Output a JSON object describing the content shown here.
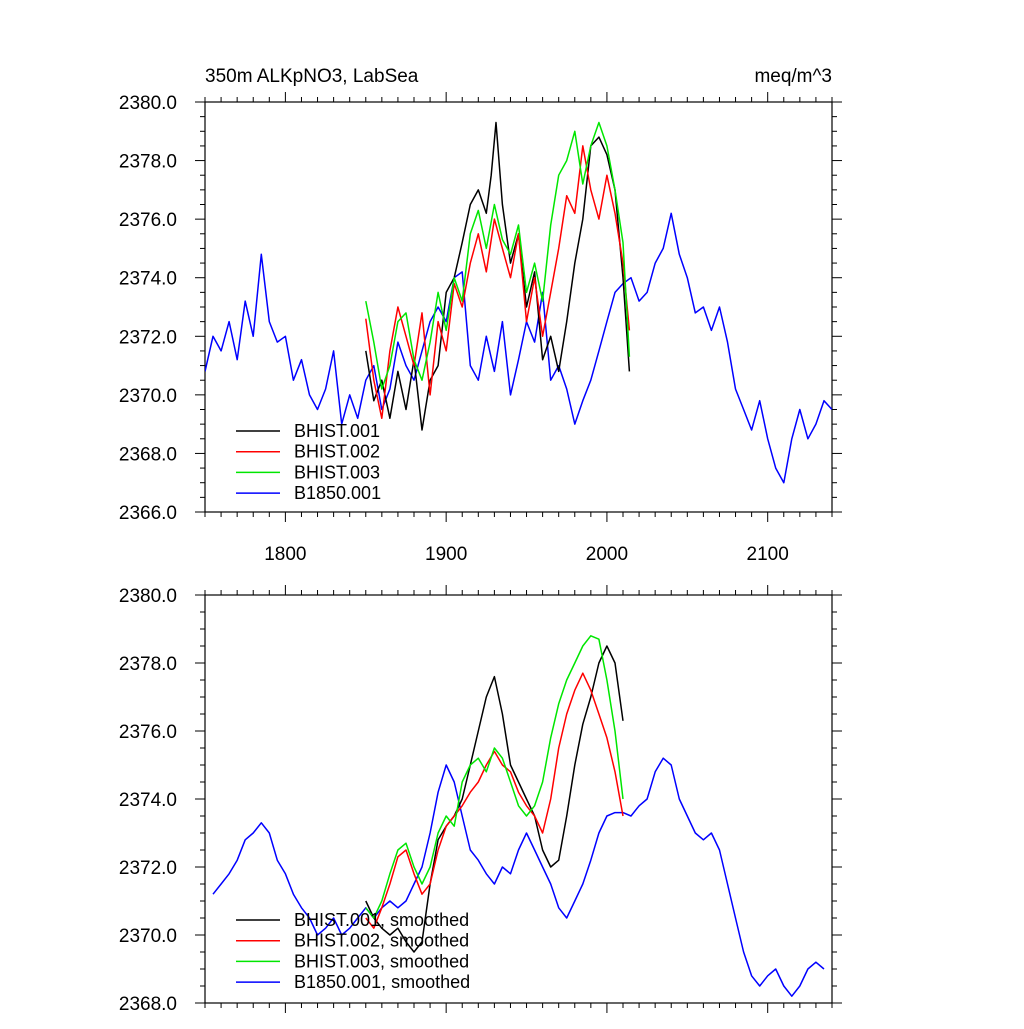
{
  "colors": {
    "BHIST.001": "#000000",
    "BHIST.002": "#ff0000",
    "BHIST.003": "#00e600",
    "B1850.001": "#0000ff"
  },
  "chart_data": [
    {
      "type": "line",
      "title": "350m ALKpNO3, LabSea",
      "units": "meq/m^3",
      "xlim": [
        1750,
        2140
      ],
      "ylim": [
        2366.0,
        2380.0
      ],
      "yticks": [
        "2380.0",
        "2378.0",
        "2376.0",
        "2374.0",
        "2372.0",
        "2370.0",
        "2368.0",
        "2366.0"
      ],
      "xticks": [
        "1800",
        "1900",
        "2000",
        "2100"
      ],
      "legend_position": "bottom-left",
      "series": [
        {
          "name": "BHIST.001",
          "x": [
            1850,
            1855,
            1860,
            1865,
            1870,
            1875,
            1880,
            1885,
            1890,
            1895,
            1900,
            1905,
            1910,
            1915,
            1920,
            1925,
            1928,
            1931,
            1935,
            1940,
            1945,
            1950,
            1955,
            1960,
            1965,
            1970,
            1975,
            1980,
            1985,
            1990,
            1995,
            2000,
            2005,
            2010,
            2014
          ],
          "values": [
            2371.5,
            2369.8,
            2370.5,
            2369.2,
            2370.8,
            2369.5,
            2371.2,
            2368.8,
            2370.5,
            2371.0,
            2373.5,
            2374.0,
            2375.2,
            2376.5,
            2377.0,
            2376.2,
            2377.5,
            2379.3,
            2376.5,
            2374.5,
            2375.5,
            2373.0,
            2374.2,
            2371.2,
            2372.0,
            2370.8,
            2372.5,
            2374.5,
            2376.0,
            2378.5,
            2378.8,
            2378.2,
            2377.0,
            2374.0,
            2370.8
          ]
        },
        {
          "name": "BHIST.002",
          "x": [
            1850,
            1855,
            1860,
            1865,
            1870,
            1875,
            1880,
            1885,
            1890,
            1895,
            1900,
            1905,
            1910,
            1915,
            1920,
            1925,
            1930,
            1935,
            1940,
            1945,
            1950,
            1955,
            1960,
            1965,
            1970,
            1975,
            1980,
            1985,
            1990,
            1995,
            2000,
            2005,
            2010,
            2014
          ],
          "values": [
            2372.6,
            2370.5,
            2369.2,
            2371.5,
            2373.0,
            2372.0,
            2371.0,
            2372.8,
            2370.0,
            2372.5,
            2371.5,
            2373.8,
            2373.0,
            2374.5,
            2375.5,
            2374.2,
            2376.0,
            2375.0,
            2374.0,
            2375.5,
            2372.5,
            2374.0,
            2372.0,
            2373.5,
            2375.0,
            2376.8,
            2376.2,
            2378.5,
            2377.0,
            2376.0,
            2377.5,
            2376.2,
            2374.5,
            2372.2
          ]
        },
        {
          "name": "BHIST.003",
          "x": [
            1850,
            1855,
            1860,
            1865,
            1870,
            1875,
            1880,
            1885,
            1890,
            1895,
            1900,
            1905,
            1910,
            1915,
            1920,
            1925,
            1930,
            1935,
            1940,
            1945,
            1950,
            1955,
            1960,
            1965,
            1970,
            1975,
            1980,
            1985,
            1990,
            1995,
            2000,
            2005,
            2010,
            2014
          ],
          "values": [
            2373.2,
            2371.8,
            2370.2,
            2371.0,
            2372.5,
            2372.8,
            2371.2,
            2370.5,
            2371.8,
            2373.5,
            2372.2,
            2374.0,
            2373.2,
            2375.5,
            2376.3,
            2375.0,
            2376.5,
            2375.3,
            2374.8,
            2375.8,
            2373.5,
            2374.5,
            2373.2,
            2375.8,
            2377.5,
            2378.0,
            2379.0,
            2377.2,
            2378.5,
            2379.3,
            2378.5,
            2377.0,
            2375.2,
            2371.3
          ]
        },
        {
          "name": "B1850.001",
          "x": [
            1750,
            1755,
            1760,
            1765,
            1770,
            1775,
            1780,
            1785,
            1790,
            1795,
            1800,
            1805,
            1810,
            1815,
            1820,
            1825,
            1830,
            1835,
            1840,
            1845,
            1850,
            1855,
            1860,
            1865,
            1870,
            1875,
            1880,
            1885,
            1890,
            1895,
            1900,
            1905,
            1910,
            1915,
            1920,
            1925,
            1930,
            1935,
            1940,
            1945,
            1950,
            1955,
            1960,
            1965,
            1970,
            1975,
            1980,
            1985,
            1990,
            1995,
            2000,
            2005,
            2010,
            2015,
            2020,
            2025,
            2030,
            2035,
            2040,
            2045,
            2050,
            2055,
            2060,
            2065,
            2070,
            2075,
            2080,
            2085,
            2090,
            2095,
            2100,
            2105,
            2110,
            2115,
            2120,
            2125,
            2130,
            2135,
            2140
          ],
          "values": [
            2370.8,
            2372.0,
            2371.5,
            2372.5,
            2371.2,
            2373.2,
            2372.0,
            2374.8,
            2372.5,
            2371.8,
            2372.0,
            2370.5,
            2371.2,
            2370.0,
            2369.5,
            2370.2,
            2371.5,
            2369.0,
            2370.0,
            2369.2,
            2370.5,
            2371.0,
            2369.5,
            2370.2,
            2371.8,
            2371.0,
            2370.5,
            2371.5,
            2372.5,
            2373.0,
            2372.5,
            2374.0,
            2374.2,
            2371.0,
            2370.5,
            2372.0,
            2370.8,
            2372.5,
            2370.0,
            2371.2,
            2372.5,
            2371.8,
            2373.5,
            2370.5,
            2371.0,
            2370.2,
            2369.0,
            2369.8,
            2370.5,
            2371.5,
            2372.5,
            2373.5,
            2373.8,
            2374.0,
            2373.2,
            2373.5,
            2374.5,
            2375.0,
            2376.2,
            2374.8,
            2374.0,
            2372.8,
            2373.0,
            2372.2,
            2373.0,
            2371.8,
            2370.2,
            2369.5,
            2368.8,
            2369.8,
            2368.5,
            2367.5,
            2367.0,
            2368.5,
            2369.5,
            2368.5,
            2369.0,
            2369.8,
            2369.5
          ]
        }
      ]
    },
    {
      "type": "line",
      "title": "",
      "units": "",
      "xlim": [
        1750,
        2140
      ],
      "ylim": [
        2368.0,
        2380.0
      ],
      "yticks": [
        "2380.0",
        "2378.0",
        "2376.0",
        "2374.0",
        "2372.0",
        "2370.0",
        "2368.0"
      ],
      "xticks": [],
      "legend_position": "bottom-left",
      "series": [
        {
          "name": "BHIST.001, smoothed",
          "x": [
            1850,
            1855,
            1860,
            1865,
            1870,
            1875,
            1880,
            1885,
            1890,
            1895,
            1900,
            1905,
            1910,
            1915,
            1920,
            1925,
            1930,
            1935,
            1940,
            1945,
            1950,
            1955,
            1960,
            1965,
            1970,
            1975,
            1980,
            1985,
            1990,
            1995,
            2000,
            2005,
            2010
          ],
          "values": [
            2371.0,
            2370.5,
            2370.2,
            2370.0,
            2370.2,
            2369.8,
            2369.5,
            2369.8,
            2371.5,
            2372.8,
            2373.2,
            2373.5,
            2374.0,
            2375.0,
            2376.0,
            2377.0,
            2377.6,
            2376.5,
            2375.0,
            2374.5,
            2374.0,
            2373.5,
            2372.5,
            2372.0,
            2372.2,
            2373.5,
            2375.0,
            2376.2,
            2377.0,
            2378.0,
            2378.5,
            2378.0,
            2376.3
          ]
        },
        {
          "name": "BHIST.002, smoothed",
          "x": [
            1850,
            1855,
            1860,
            1865,
            1870,
            1875,
            1880,
            1885,
            1890,
            1895,
            1900,
            1905,
            1910,
            1915,
            1920,
            1925,
            1930,
            1935,
            1940,
            1945,
            1950,
            1955,
            1960,
            1965,
            1970,
            1975,
            1980,
            1985,
            1990,
            1995,
            2000,
            2005,
            2010
          ],
          "values": [
            2370.5,
            2370.2,
            2370.8,
            2371.5,
            2372.3,
            2372.5,
            2371.8,
            2371.2,
            2371.5,
            2372.5,
            2373.2,
            2373.5,
            2373.8,
            2374.2,
            2374.5,
            2375.0,
            2375.4,
            2375.0,
            2374.8,
            2374.2,
            2373.8,
            2373.5,
            2373.0,
            2374.0,
            2375.5,
            2376.5,
            2377.2,
            2377.7,
            2377.2,
            2376.5,
            2375.8,
            2374.8,
            2373.5
          ]
        },
        {
          "name": "BHIST.003, smoothed",
          "x": [
            1850,
            1855,
            1860,
            1865,
            1870,
            1875,
            1880,
            1885,
            1890,
            1895,
            1900,
            1905,
            1910,
            1915,
            1920,
            1925,
            1930,
            1935,
            1940,
            1945,
            1950,
            1955,
            1960,
            1965,
            1970,
            1975,
            1980,
            1985,
            1990,
            1995,
            2000,
            2005,
            2010
          ],
          "values": [
            2370.8,
            2370.5,
            2371.0,
            2371.8,
            2372.5,
            2372.7,
            2372.0,
            2371.5,
            2372.0,
            2373.0,
            2373.5,
            2373.2,
            2374.5,
            2375.0,
            2375.2,
            2374.8,
            2375.5,
            2375.2,
            2374.5,
            2373.8,
            2373.5,
            2373.8,
            2374.5,
            2375.8,
            2376.8,
            2377.5,
            2378.0,
            2378.5,
            2378.8,
            2378.7,
            2377.5,
            2376.0,
            2374.0
          ]
        },
        {
          "name": "B1850.001, smoothed",
          "x": [
            1755,
            1760,
            1765,
            1770,
            1775,
            1780,
            1785,
            1790,
            1795,
            1800,
            1805,
            1810,
            1815,
            1820,
            1825,
            1830,
            1835,
            1840,
            1845,
            1850,
            1855,
            1860,
            1865,
            1870,
            1875,
            1880,
            1885,
            1890,
            1895,
            1900,
            1905,
            1910,
            1915,
            1920,
            1925,
            1930,
            1935,
            1940,
            1945,
            1950,
            1955,
            1960,
            1965,
            1970,
            1975,
            1980,
            1985,
            1990,
            1995,
            2000,
            2005,
            2010,
            2015,
            2020,
            2025,
            2030,
            2035,
            2040,
            2045,
            2050,
            2055,
            2060,
            2065,
            2070,
            2075,
            2080,
            2085,
            2090,
            2095,
            2100,
            2105,
            2110,
            2115,
            2120,
            2125,
            2130,
            2135
          ],
          "values": [
            2371.2,
            2371.5,
            2371.8,
            2372.2,
            2372.8,
            2373.0,
            2373.3,
            2373.0,
            2372.2,
            2371.8,
            2371.2,
            2370.8,
            2370.5,
            2370.0,
            2370.2,
            2370.5,
            2370.0,
            2370.2,
            2370.5,
            2370.8,
            2370.5,
            2370.8,
            2371.0,
            2370.8,
            2371.0,
            2371.5,
            2372.0,
            2373.0,
            2374.2,
            2375.0,
            2374.5,
            2373.5,
            2372.5,
            2372.2,
            2371.8,
            2371.5,
            2372.0,
            2371.8,
            2372.5,
            2373.0,
            2372.5,
            2372.0,
            2371.5,
            2370.8,
            2370.5,
            2371.0,
            2371.5,
            2372.2,
            2373.0,
            2373.5,
            2373.6,
            2373.6,
            2373.5,
            2373.8,
            2374.0,
            2374.8,
            2375.2,
            2375.0,
            2374.0,
            2373.5,
            2373.0,
            2372.8,
            2373.0,
            2372.5,
            2371.5,
            2370.5,
            2369.5,
            2368.8,
            2368.5,
            2368.8,
            2369.0,
            2368.5,
            2368.2,
            2368.5,
            2369.0,
            2369.2,
            2369.0
          ]
        }
      ]
    }
  ]
}
